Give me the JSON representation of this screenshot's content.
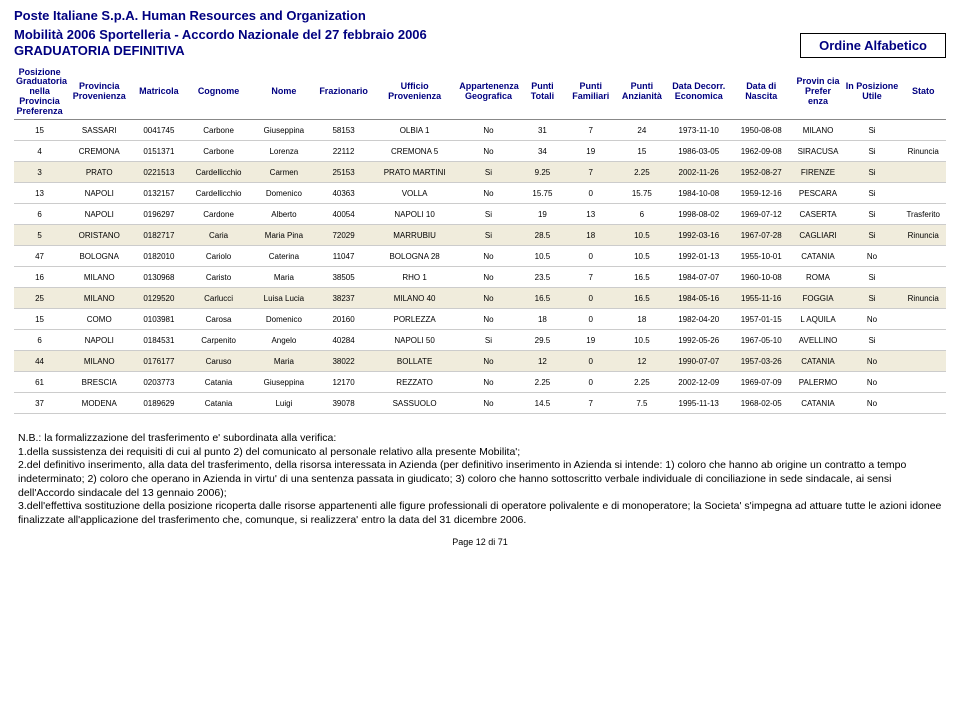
{
  "company": "Poste Italiane S.p.A. Human Resources and Organization",
  "title_line1": "Mobilità 2006 Sportelleria - Accordo Nazionale del 27 febbraio 2006",
  "title_line2": "GRADUATORIA DEFINITIVA",
  "order_label": "Ordine Alfabetico",
  "columns": [
    "Posizione Graduatoria nella Provincia Preferenza",
    "Provincia Provenienza",
    "Matricola",
    "Cognome",
    "Nome",
    "Frazionario",
    "Ufficio Provenienza",
    "Appartenenza Geografica",
    "Punti Totali",
    "Punti Familiari",
    "Punti Anzianità",
    "Data Decorr. Economica",
    "Data di Nascita",
    "Provin cia Prefer enza",
    "In Posizione Utile",
    "Stato"
  ],
  "rows": [
    [
      "15",
      "SASSARI",
      "0041745",
      "Carbone",
      "Giuseppina",
      "58153",
      "OLBIA 1",
      "No",
      "31",
      "7",
      "24",
      "1973-11-10",
      "1950-08-08",
      "MILANO",
      "Si",
      ""
    ],
    [
      "4",
      "CREMONA",
      "0151371",
      "Carbone",
      "Lorenza",
      "22112",
      "CREMONA 5",
      "No",
      "34",
      "19",
      "15",
      "1986-03-05",
      "1962-09-08",
      "SIRACUSA",
      "Si",
      "Rinuncia"
    ],
    [
      "3",
      "PRATO",
      "0221513",
      "Cardellicchio",
      "Carmen",
      "25153",
      "PRATO MARTINI",
      "Si",
      "9.25",
      "7",
      "2.25",
      "2002-11-26",
      "1952-08-27",
      "FIRENZE",
      "Si",
      ""
    ],
    [
      "13",
      "NAPOLI",
      "0132157",
      "Cardellicchio",
      "Domenico",
      "40363",
      "VOLLA",
      "No",
      "15.75",
      "0",
      "15.75",
      "1984-10-08",
      "1959-12-16",
      "PESCARA",
      "Si",
      ""
    ],
    [
      "6",
      "NAPOLI",
      "0196297",
      "Cardone",
      "Alberto",
      "40054",
      "NAPOLI 10",
      "Si",
      "19",
      "13",
      "6",
      "1998-08-02",
      "1969-07-12",
      "CASERTA",
      "Si",
      "Trasferito"
    ],
    [
      "5",
      "ORISTANO",
      "0182717",
      "Caria",
      "Maria Pina",
      "72029",
      "MARRUBIU",
      "Si",
      "28.5",
      "18",
      "10.5",
      "1992-03-16",
      "1967-07-28",
      "CAGLIARI",
      "Si",
      "Rinuncia"
    ],
    [
      "47",
      "BOLOGNA",
      "0182010",
      "Cariolo",
      "Caterina",
      "11047",
      "BOLOGNA 28",
      "No",
      "10.5",
      "0",
      "10.5",
      "1992-01-13",
      "1955-10-01",
      "CATANIA",
      "No",
      ""
    ],
    [
      "16",
      "MILANO",
      "0130968",
      "Caristo",
      "Maria",
      "38505",
      "RHO 1",
      "No",
      "23.5",
      "7",
      "16.5",
      "1984-07-07",
      "1960-10-08",
      "ROMA",
      "Si",
      ""
    ],
    [
      "25",
      "MILANO",
      "0129520",
      "Carlucci",
      "Luisa Lucia",
      "38237",
      "MILANO 40",
      "No",
      "16.5",
      "0",
      "16.5",
      "1984-05-16",
      "1955-11-16",
      "FOGGIA",
      "Si",
      "Rinuncia"
    ],
    [
      "15",
      "COMO",
      "0103981",
      "Carosa",
      "Domenico",
      "20160",
      "PORLEZZA",
      "No",
      "18",
      "0",
      "18",
      "1982-04-20",
      "1957-01-15",
      "L AQUILA",
      "No",
      ""
    ],
    [
      "6",
      "NAPOLI",
      "0184531",
      "Carpenito",
      "Angelo",
      "40284",
      "NAPOLI 50",
      "Si",
      "29.5",
      "19",
      "10.5",
      "1992-05-26",
      "1967-05-10",
      "AVELLINO",
      "Si",
      ""
    ],
    [
      "44",
      "MILANO",
      "0176177",
      "Caruso",
      "Maria",
      "38022",
      "BOLLATE",
      "No",
      "12",
      "0",
      "12",
      "1990-07-07",
      "1957-03-26",
      "CATANIA",
      "No",
      ""
    ],
    [
      "61",
      "BRESCIA",
      "0203773",
      "Catania",
      "Giuseppina",
      "12170",
      "REZZATO",
      "No",
      "2.25",
      "0",
      "2.25",
      "2002-12-09",
      "1969-07-09",
      "PALERMO",
      "No",
      ""
    ],
    [
      "37",
      "MODENA",
      "0189629",
      "Catania",
      "Luigi",
      "39078",
      "SASSUOLO",
      "No",
      "14.5",
      "7",
      "7.5",
      "1995-11-13",
      "1968-02-05",
      "CATANIA",
      "No",
      ""
    ]
  ],
  "row_stripe": [
    false,
    false,
    true,
    false,
    false,
    true,
    false,
    false,
    true,
    false,
    false,
    true,
    false,
    false
  ],
  "footer": {
    "nb": "N.B.: la formalizzazione del trasferimento e' subordinata alla verifica:",
    "p1": "1.della sussistenza dei requisiti di cui al punto 2) del comunicato al personale relativo alla presente Mobilita';",
    "p2": " 2.del definitivo inserimento, alla data del trasferimento, della risorsa interessata in Azienda (per definitivo inserimento in Azienda si intende: 1) coloro che hanno ab origine un contratto a tempo indeterminato; 2) coloro che operano in Azienda in virtu' di una sentenza passata in giudicato; 3) coloro che hanno sottoscritto verbale individuale di conciliazione in sede sindacale, ai sensi dell'Accordo sindacale del 13 gennaio 2006);",
    "p3": " 3.dell'effettiva sostituzione della posizione ricoperta dalle risorse appartenenti alle figure professionali di operatore polivalente e di monoperatore; la Societa' s'impegna ad attuare tutte le azioni idonee finalizzate all'applicazione del trasferimento che, comunque, si realizzera' entro la data del 31 dicembre 2006."
  },
  "page_number": "Page 12 di 71"
}
